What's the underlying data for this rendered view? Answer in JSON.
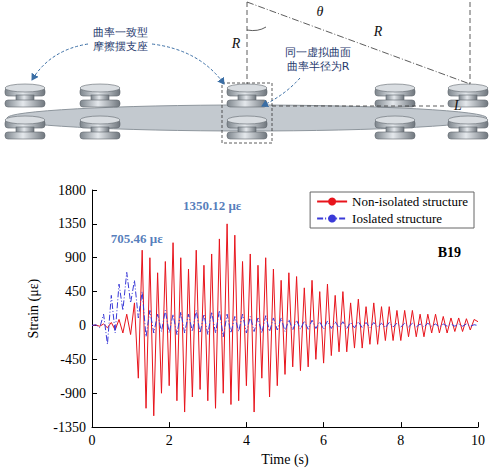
{
  "diagram": {
    "bearing_label": "曲率一致型摩擦摆支座",
    "surface_label": "同一虚拟曲面曲率半径为R",
    "radius_labels": [
      "R",
      "R"
    ],
    "angle_label": "θ",
    "span_label": "L"
  },
  "chart_data": {
    "type": "line",
    "x_label": "Time (s)",
    "y_label": "Strain (με)",
    "x": [
      0,
      0.1,
      0.2,
      0.3,
      0.4,
      0.5,
      0.6,
      0.7,
      0.8,
      0.9,
      1,
      1.1,
      1.2,
      1.3,
      1.4,
      1.5,
      1.6,
      1.7,
      1.8,
      1.9,
      2,
      2.1,
      2.2,
      2.3,
      2.4,
      2.5,
      2.6,
      2.7,
      2.8,
      2.9,
      3,
      3.1,
      3.2,
      3.3,
      3.4,
      3.5,
      3.6,
      3.7,
      3.8,
      3.9,
      4,
      4.1,
      4.2,
      4.3,
      4.4,
      4.5,
      4.6,
      4.7,
      4.8,
      4.9,
      5,
      5.1,
      5.2,
      5.3,
      5.4,
      5.5,
      5.6,
      5.7,
      5.8,
      5.9,
      6,
      6.1,
      6.2,
      6.3,
      6.4,
      6.5,
      6.6,
      6.7,
      6.8,
      6.9,
      7,
      7.1,
      7.2,
      7.3,
      7.4,
      7.5,
      7.6,
      7.7,
      7.8,
      7.9,
      8,
      8.1,
      8.2,
      8.3,
      8.4,
      8.5,
      8.6,
      8.7,
      8.8,
      8.9,
      9,
      9.1,
      9.2,
      9.3,
      9.4,
      9.5,
      9.6,
      9.7,
      9.8,
      9.9,
      10
    ],
    "series": [
      {
        "name": "Non-isolated structure",
        "color": "#e8141c",
        "line_style": "solid",
        "values": [
          0,
          5,
          -10,
          20,
          -30,
          40,
          -60,
          80,
          -100,
          150,
          -120,
          300,
          -700,
          1000,
          -1100,
          900,
          -1200,
          700,
          -900,
          850,
          -800,
          1100,
          -1000,
          900,
          -1150,
          750,
          -950,
          1000,
          -850,
          800,
          -1000,
          950,
          -1100,
          1150,
          -900,
          1350.12,
          -1050,
          1200,
          -1000,
          850,
          -800,
          950,
          -1150,
          800,
          -700,
          900,
          -950,
          750,
          -800,
          600,
          -650,
          700,
          -550,
          650,
          -600,
          500,
          -550,
          600,
          -450,
          450,
          -500,
          550,
          -400,
          400,
          -350,
          450,
          -350,
          300,
          -300,
          350,
          -300,
          250,
          -250,
          300,
          -250,
          250,
          -200,
          250,
          -200,
          200,
          -200,
          200,
          -150,
          200,
          -150,
          150,
          -150,
          150,
          -100,
          150,
          -100,
          120,
          -100,
          100,
          -80,
          100,
          -80,
          90,
          -60,
          80,
          50
        ]
      },
      {
        "name": "Ioslated structure",
        "color": "#3a3ad8",
        "line_style": "dashdot",
        "values": [
          0,
          10,
          -30,
          150,
          -250,
          400,
          -100,
          550,
          200,
          705.46,
          300,
          600,
          100,
          450,
          -150,
          200,
          -100,
          150,
          -80,
          200,
          -100,
          150,
          -120,
          180,
          -100,
          150,
          -80,
          200,
          -100,
          150,
          -120,
          180,
          -100,
          200,
          -150,
          150,
          -100,
          120,
          -80,
          150,
          -100,
          120,
          -80,
          100,
          -100,
          130,
          -80,
          100,
          -60,
          100,
          -80,
          80,
          -60,
          70,
          -50,
          60,
          -50,
          70,
          -40,
          50,
          -50,
          60,
          -40,
          50,
          -30,
          50,
          -40,
          40,
          -30,
          50,
          -30,
          40,
          -30,
          40,
          -20,
          30,
          -30,
          40,
          -20,
          30,
          -20,
          30,
          -20,
          30,
          -20,
          20,
          -20,
          30,
          -10,
          20,
          -20,
          20,
          -10,
          20,
          -10,
          20,
          -10,
          20,
          -10,
          10,
          0
        ]
      }
    ],
    "xlim": [
      0,
      10
    ],
    "xticks": [
      0,
      2,
      4,
      6,
      8,
      10
    ],
    "ylim": [
      -1350,
      1800
    ],
    "yticks": [
      -1350,
      -900,
      -450,
      0,
      450,
      900,
      1350,
      1800
    ],
    "grid": false,
    "legend": "upper right",
    "annotations": [
      {
        "text": "1350.12 με",
        "x": 3.5,
        "y": 1350.12
      },
      {
        "text": "705.46 με",
        "x": 0.9,
        "y": 705.46
      }
    ],
    "panel_label": "B19"
  }
}
